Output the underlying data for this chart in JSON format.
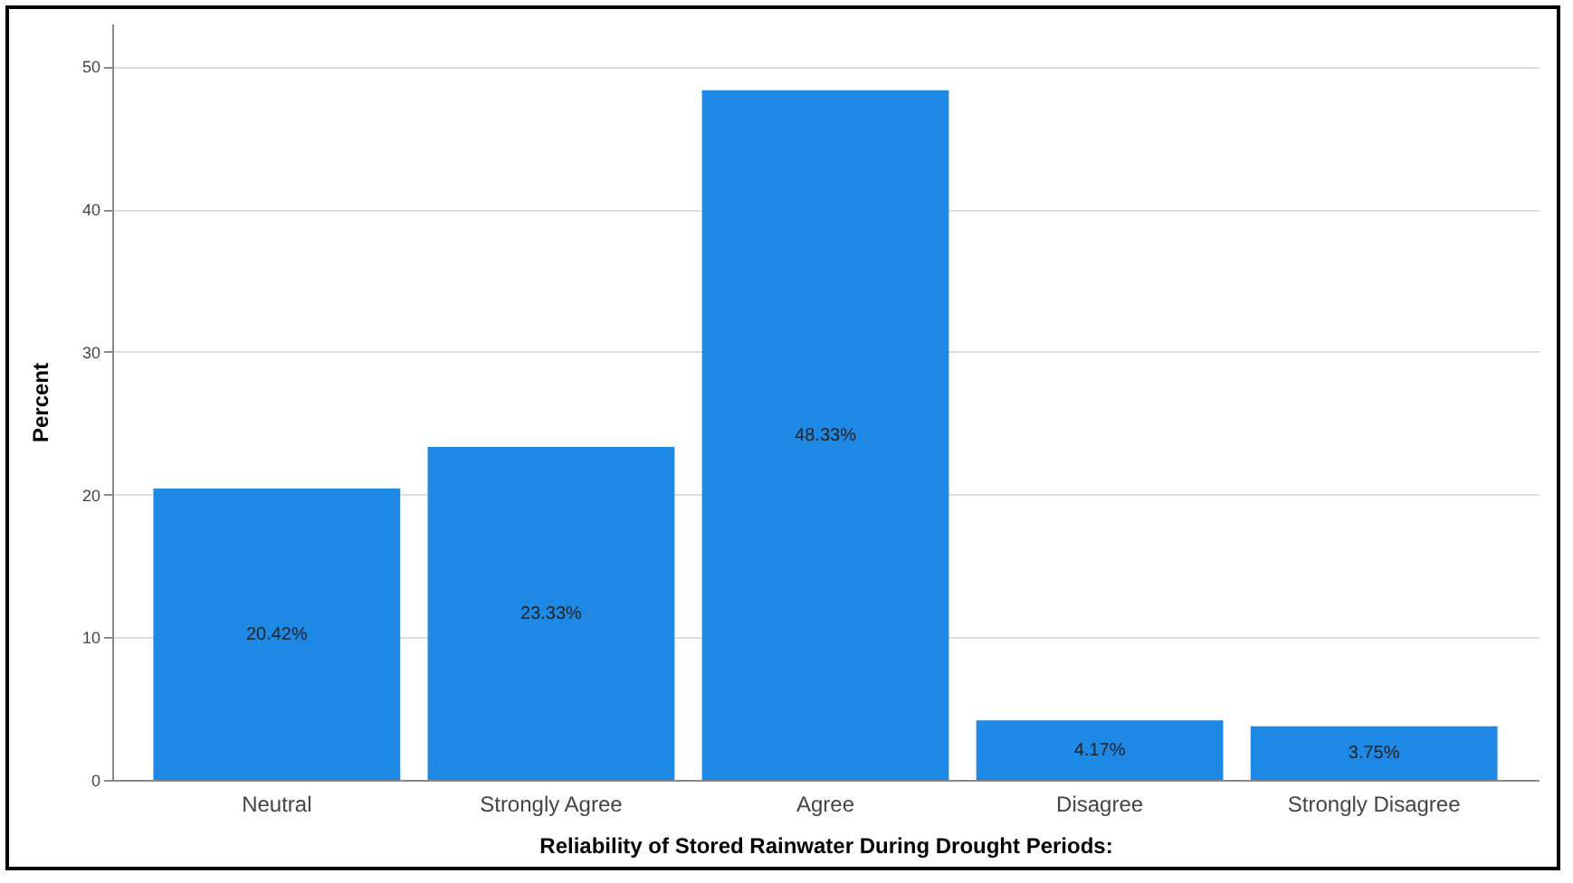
{
  "chart_data": {
    "type": "bar",
    "xlabel": "Reliability of Stored Rainwater During Drought Periods:",
    "ylabel": "Percent",
    "categories": [
      "Neutral",
      "Strongly Agree",
      "Agree",
      "Disagree",
      "Strongly Disagree"
    ],
    "values": [
      20.42,
      23.33,
      48.33,
      4.17,
      3.75
    ],
    "value_labels": [
      "20.42%",
      "23.33%",
      "48.33%",
      "4.17%",
      "3.75%"
    ],
    "color": "#1e88e5",
    "ylim": [
      0,
      53
    ],
    "yticks": [
      0,
      10,
      20,
      30,
      40,
      50
    ],
    "grid": "y"
  }
}
